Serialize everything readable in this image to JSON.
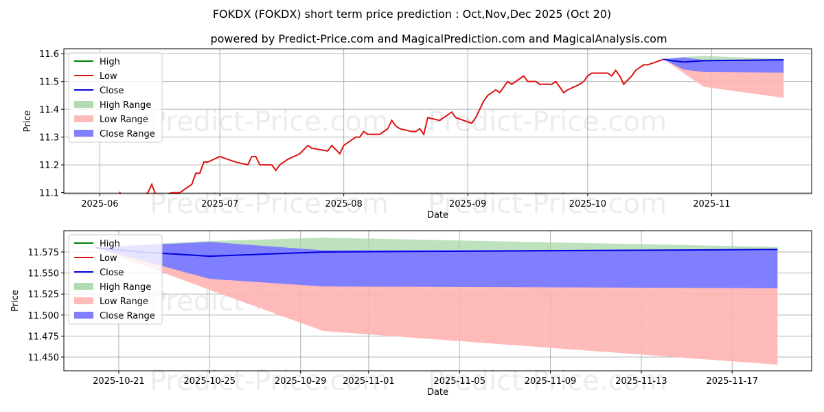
{
  "title": "FOKDX (FOKDX) short term price prediction : Oct,Nov,Dec 2025 (Oct 20)",
  "subtitle": "powered by Predict-Price.com and MagicalPrediction.com and MagicalAnalysis.com",
  "watermark": "Predict-Price.com",
  "colors": {
    "high": "#008000",
    "low": "#dd1111",
    "close": "#0000dd",
    "high_range": "#a8d8a8",
    "low_range": "#ffb3b3",
    "close_range": "#7f7fff"
  },
  "legend": [
    "High",
    "Low",
    "Close",
    "High Range",
    "Low Range",
    "Close Range"
  ],
  "forecast": {
    "dates": [
      "2025-10-20",
      "2025-10-22",
      "2025-10-25",
      "2025-10-30",
      "2025-11-19"
    ],
    "close": [
      11.58,
      11.575,
      11.57,
      11.575,
      11.578
    ],
    "high_range_top": [
      11.58,
      11.584,
      11.588,
      11.592,
      11.581
    ],
    "high_range_bottom": [
      11.58,
      11.578,
      11.575,
      11.577,
      11.578
    ],
    "close_range_top": [
      11.58,
      11.583,
      11.587,
      11.577,
      11.578
    ],
    "close_range_bottom": [
      11.58,
      11.565,
      11.543,
      11.534,
      11.532
    ],
    "low_range_top": [
      11.58,
      11.575,
      11.56,
      11.545,
      11.54
    ],
    "low_range_bottom": [
      11.58,
      11.56,
      11.53,
      11.481,
      11.441
    ]
  },
  "chart_data": [
    {
      "type": "line",
      "xlabel": "Date",
      "ylabel": "Price",
      "xlim": [
        "2025-05-23",
        "2025-11-26"
      ],
      "ylim": [
        11.0965,
        11.6178
      ],
      "xticks": [
        [
          "2025-06-01",
          "2025-06"
        ],
        [
          "2025-07-01",
          "2025-07"
        ],
        [
          "2025-08-01",
          "2025-08"
        ],
        [
          "2025-09-01",
          "2025-09"
        ],
        [
          "2025-10-01",
          "2025-10"
        ],
        [
          "2025-11-01",
          "2025-11"
        ]
      ],
      "yticks": [
        11.1,
        11.2,
        11.3,
        11.4,
        11.5,
        11.6
      ],
      "ytick_labels": [
        "11.1",
        "11.2",
        "11.3",
        "11.4",
        "11.5",
        "11.6"
      ],
      "grid": true,
      "legend_position": "top-left",
      "low_history": [
        [
          "2025-05-31",
          11.04
        ],
        [
          "2025-06-01",
          11.06
        ],
        [
          "2025-06-04",
          11.05
        ],
        [
          "2025-06-05",
          11.06
        ],
        [
          "2025-06-06",
          11.1
        ],
        [
          "2025-06-08",
          11.06
        ],
        [
          "2025-06-11",
          11.08
        ],
        [
          "2025-06-13",
          11.1
        ],
        [
          "2025-06-14",
          11.13
        ],
        [
          "2025-06-15",
          11.09
        ],
        [
          "2025-06-17",
          11.09
        ],
        [
          "2025-06-19",
          11.1
        ],
        [
          "2025-06-21",
          11.1
        ],
        [
          "2025-06-24",
          11.13
        ],
        [
          "2025-06-25",
          11.17
        ],
        [
          "2025-06-26",
          11.17
        ],
        [
          "2025-06-27",
          11.21
        ],
        [
          "2025-06-28",
          11.21
        ],
        [
          "2025-07-01",
          11.23
        ],
        [
          "2025-07-03",
          11.22
        ],
        [
          "2025-07-05",
          11.21
        ],
        [
          "2025-07-08",
          11.2
        ],
        [
          "2025-07-09",
          11.23
        ],
        [
          "2025-07-10",
          11.23
        ],
        [
          "2025-07-11",
          11.2
        ],
        [
          "2025-07-14",
          11.2
        ],
        [
          "2025-07-15",
          11.18
        ],
        [
          "2025-07-16",
          11.2
        ],
        [
          "2025-07-18",
          11.22
        ],
        [
          "2025-07-21",
          11.24
        ],
        [
          "2025-07-23",
          11.27
        ],
        [
          "2025-07-24",
          11.26
        ],
        [
          "2025-07-28",
          11.25
        ],
        [
          "2025-07-29",
          11.27
        ],
        [
          "2025-07-31",
          11.24
        ],
        [
          "2025-08-01",
          11.27
        ],
        [
          "2025-08-03",
          11.29
        ],
        [
          "2025-08-04",
          11.3
        ],
        [
          "2025-08-05",
          11.3
        ],
        [
          "2025-08-06",
          11.32
        ],
        [
          "2025-08-07",
          11.31
        ],
        [
          "2025-08-10",
          11.31
        ],
        [
          "2025-08-12",
          11.33
        ],
        [
          "2025-08-13",
          11.36
        ],
        [
          "2025-08-14",
          11.34
        ],
        [
          "2025-08-15",
          11.33
        ],
        [
          "2025-08-18",
          11.32
        ],
        [
          "2025-08-19",
          11.32
        ],
        [
          "2025-08-20",
          11.33
        ],
        [
          "2025-08-21",
          11.31
        ],
        [
          "2025-08-22",
          11.37
        ],
        [
          "2025-08-25",
          11.36
        ],
        [
          "2025-08-28",
          11.39
        ],
        [
          "2025-08-29",
          11.37
        ],
        [
          "2025-09-02",
          11.35
        ],
        [
          "2025-09-03",
          11.37
        ],
        [
          "2025-09-05",
          11.43
        ],
        [
          "2025-09-06",
          11.45
        ],
        [
          "2025-09-08",
          11.47
        ],
        [
          "2025-09-09",
          11.46
        ],
        [
          "2025-09-11",
          11.5
        ],
        [
          "2025-09-12",
          11.49
        ],
        [
          "2025-09-14",
          11.51
        ],
        [
          "2025-09-15",
          11.52
        ],
        [
          "2025-09-16",
          11.5
        ],
        [
          "2025-09-18",
          11.5
        ],
        [
          "2025-09-19",
          11.49
        ],
        [
          "2025-09-22",
          11.49
        ],
        [
          "2025-09-23",
          11.5
        ],
        [
          "2025-09-25",
          11.46
        ],
        [
          "2025-09-26",
          11.47
        ],
        [
          "2025-09-29",
          11.49
        ],
        [
          "2025-09-30",
          11.5
        ],
        [
          "2025-10-01",
          11.52
        ],
        [
          "2025-10-02",
          11.53
        ],
        [
          "2025-10-05",
          11.53
        ],
        [
          "2025-10-06",
          11.53
        ],
        [
          "2025-10-07",
          11.52
        ],
        [
          "2025-10-08",
          11.54
        ],
        [
          "2025-10-09",
          11.52
        ],
        [
          "2025-10-10",
          11.49
        ],
        [
          "2025-10-12",
          11.52
        ],
        [
          "2025-10-13",
          11.54
        ],
        [
          "2025-10-15",
          11.56
        ],
        [
          "2025-10-16",
          11.56
        ],
        [
          "2025-10-20",
          11.58
        ]
      ]
    },
    {
      "type": "area",
      "xlabel": "Date",
      "ylabel": "Price",
      "xlim": [
        "2025-10-18T14:00:00",
        "2025-11-20T12:00:00"
      ],
      "ylim": [
        11.4337,
        11.6003
      ],
      "xticks": [
        [
          "2025-10-21",
          "2025-10-21"
        ],
        [
          "2025-10-25",
          "2025-10-25"
        ],
        [
          "2025-10-29",
          "2025-10-29"
        ],
        [
          "2025-11-01",
          "2025-11-01"
        ],
        [
          "2025-11-05",
          "2025-11-05"
        ],
        [
          "2025-11-09",
          "2025-11-09"
        ],
        [
          "2025-11-13",
          "2025-11-13"
        ],
        [
          "2025-11-17",
          "2025-11-17"
        ]
      ],
      "yticks": [
        11.45,
        11.475,
        11.5,
        11.525,
        11.55,
        11.575
      ],
      "ytick_labels": [
        "11.450",
        "11.475",
        "11.500",
        "11.525",
        "11.550",
        "11.575"
      ],
      "grid": true,
      "legend_position": "top-left"
    }
  ]
}
